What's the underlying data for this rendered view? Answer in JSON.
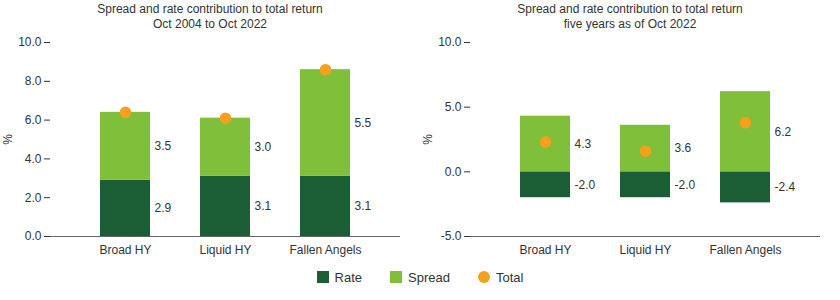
{
  "chart_data": [
    {
      "type": "bar",
      "title": "Spread and rate contribution to total return",
      "subtitle": "Oct 2004 to Oct 2022",
      "categories": [
        "Broad HY",
        "Liquid HY",
        "Fallen Angels"
      ],
      "stacked": true,
      "data_labels": true,
      "grid": false,
      "legend": "bottom",
      "y_label": "%",
      "ylim": [
        0,
        10
      ],
      "yticks": [
        {
          "value": 0,
          "label": "0.0"
        },
        {
          "value": 2,
          "label": "2.0"
        },
        {
          "value": 4,
          "label": "4.0"
        },
        {
          "value": 6,
          "label": "6.0"
        },
        {
          "value": 8,
          "label": "8.0"
        },
        {
          "value": 10,
          "label": "10.0"
        }
      ],
      "series": [
        {
          "name": "Rate",
          "type": "bar",
          "color": "#1b5e36",
          "values": [
            2.9,
            3.1,
            3.1
          ],
          "value_labels": [
            "2.9",
            "3.1",
            "3.1"
          ]
        },
        {
          "name": "Spread",
          "type": "bar",
          "color": "#80bf3a",
          "values": [
            3.5,
            3.0,
            5.5
          ],
          "value_labels": [
            "3.5",
            "3.0",
            "5.5"
          ]
        },
        {
          "name": "Total",
          "type": "scatter",
          "marker": "circle",
          "color": "#f5a11c",
          "values": [
            6.4,
            6.1,
            8.6
          ]
        }
      ]
    },
    {
      "type": "bar",
      "title": "Spread and rate contribution to total return",
      "subtitle": "five years as of Oct 2022",
      "categories": [
        "Broad HY",
        "Liquid HY",
        "Fallen Angels"
      ],
      "stacked": true,
      "data_labels": true,
      "grid": false,
      "legend": "bottom",
      "y_label": "%",
      "ylim": [
        -5,
        10
      ],
      "yticks": [
        {
          "value": -5,
          "label": "-5.0"
        },
        {
          "value": 0,
          "label": "0.0"
        },
        {
          "value": 5,
          "label": "5.0"
        },
        {
          "value": 10,
          "label": "10.0"
        }
      ],
      "series": [
        {
          "name": "Rate",
          "type": "bar",
          "color": "#1b5e36",
          "values": [
            -2.0,
            -2.0,
            -2.4
          ],
          "value_labels": [
            "-2.0",
            "-2.0",
            "-2.4"
          ]
        },
        {
          "name": "Spread",
          "type": "bar",
          "color": "#80bf3a",
          "values": [
            4.3,
            3.6,
            6.2
          ],
          "value_labels": [
            "4.3",
            "3.6",
            "6.2"
          ]
        },
        {
          "name": "Total",
          "type": "scatter",
          "marker": "circle",
          "color": "#f5a11c",
          "values": [
            2.3,
            1.6,
            3.8
          ]
        }
      ]
    }
  ]
}
